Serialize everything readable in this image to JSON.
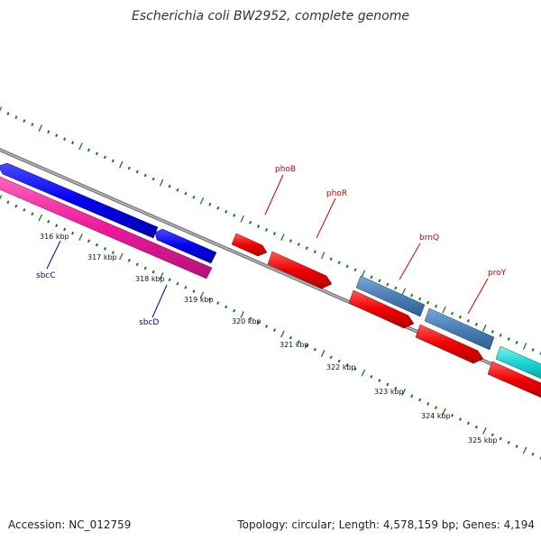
{
  "title": "Escherichia coli BW2952, complete genome",
  "footer": {
    "accession": "Accession: NC_012759",
    "summary": "Topology: circular; Length: 4,578,159 bp; Genes: 4,194"
  },
  "colors": {
    "backbone": "#808080",
    "tick_marks": "#1a7a1a",
    "forward_label": "#cc0000",
    "reverse_label": "#0000aa",
    "cds_red": "#ee0000",
    "cds_blue": "#0000ee",
    "cds_steel": "#4a7fb5",
    "cds_pink": "#ee1a9a",
    "cds_cyan": "#19d3d3"
  },
  "scale": {
    "unit": "kbp",
    "ticks": [
      {
        "label": "316 kbp"
      },
      {
        "label": "317 kbp"
      },
      {
        "label": "318 kbp"
      },
      {
        "label": "319 kbp"
      },
      {
        "label": "320 kbp"
      },
      {
        "label": "321 kbp"
      },
      {
        "label": "322 kbp"
      },
      {
        "label": "323 kbp"
      },
      {
        "label": "324 kbp"
      },
      {
        "label": "325 kbp"
      }
    ]
  },
  "gene_labels": [
    {
      "id": "phoB",
      "text": "phoB",
      "strand": "forward"
    },
    {
      "id": "phoR",
      "text": "phoR",
      "strand": "forward"
    },
    {
      "id": "brnQ",
      "text": "brnQ",
      "strand": "forward"
    },
    {
      "id": "proY",
      "text": "proY",
      "strand": "forward"
    },
    {
      "id": "sbcC",
      "text": "sbcC",
      "strand": "reverse"
    },
    {
      "id": "sbcD",
      "text": "sbcD",
      "strand": "reverse"
    }
  ]
}
